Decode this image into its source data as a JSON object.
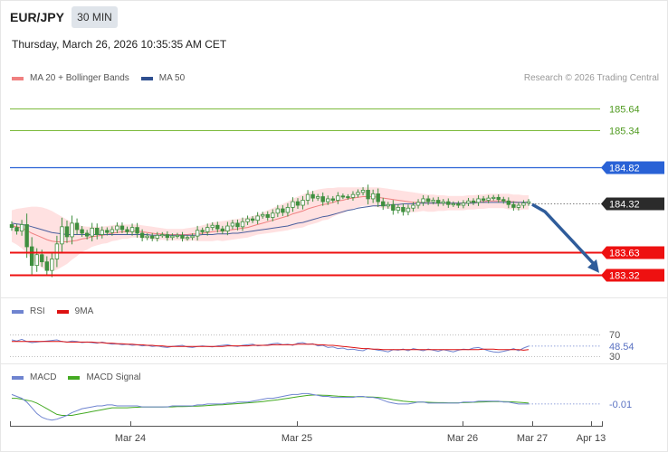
{
  "header": {
    "symbol": "EUR/JPY",
    "timeframe": "30 MIN",
    "datetime": "Thursday, March 26, 2026 10:35:35 AM CET"
  },
  "credit": "Research © 2026 Trading Central",
  "colors": {
    "bollinger_band": "#ffd9d9",
    "ma20": "#f08080",
    "ma50": "#4a5f9e",
    "candle": "#3f8f3f",
    "resistance": "#7cba3c",
    "pivot": "#2962d6",
    "support": "#ee1111",
    "forecast_arrow": "#2f5c9a",
    "rsi": "#6f84d0",
    "rsi_ma": "#dd1111",
    "macd": "#6f84d0",
    "macd_signal": "#44aa22"
  },
  "chart_data": [
    {
      "type": "candlestick",
      "panel": "price",
      "legend": [
        {
          "label": "MA 20 + Bollinger Bands",
          "color": "#f08080"
        },
        {
          "label": "MA 50",
          "color": "#2e4f8f"
        }
      ],
      "x_ticks": [
        "Mar 24",
        "Mar 25",
        "Mar 26",
        "Mar 27",
        "Apr 13"
      ],
      "ylim": [
        183.18,
        185.78
      ],
      "closes": [
        183.98,
        183.93,
        184.02,
        183.71,
        183.45,
        183.6,
        183.5,
        183.38,
        183.54,
        183.75,
        183.99,
        183.85,
        184.04,
        183.95,
        183.9,
        183.86,
        183.97,
        183.88,
        183.94,
        183.91,
        183.95,
        184.0,
        183.95,
        183.92,
        183.98,
        183.9,
        183.84,
        183.86,
        183.83,
        183.87,
        183.88,
        183.84,
        183.86,
        183.87,
        183.83,
        183.84,
        183.86,
        183.94,
        183.92,
        183.98,
        184.01,
        183.96,
        183.93,
        184.0,
        184.04,
        183.99,
        184.06,
        184.1,
        184.08,
        184.14,
        184.16,
        184.12,
        184.18,
        184.24,
        184.19,
        184.26,
        184.34,
        184.29,
        184.36,
        184.44,
        184.39,
        184.41,
        184.34,
        184.38,
        184.36,
        184.42,
        184.41,
        184.4,
        184.44,
        184.47,
        184.5,
        184.38,
        184.45,
        184.34,
        184.28,
        184.3,
        184.22,
        184.26,
        184.2,
        184.25,
        184.29,
        184.33,
        184.38,
        184.34,
        184.36,
        184.32,
        184.34,
        184.3,
        184.31,
        184.29,
        184.32,
        184.35,
        184.33,
        184.38,
        184.36,
        184.39,
        184.4,
        184.37,
        184.35,
        184.3,
        184.26,
        184.29,
        184.32,
        184.34
      ],
      "ma20": [
        184.0,
        183.99,
        183.97,
        183.94,
        183.9,
        183.87,
        183.84,
        183.81,
        183.79,
        183.78,
        183.78,
        183.78,
        183.79,
        183.8,
        183.82,
        183.83,
        183.85,
        183.86,
        183.87,
        183.88,
        183.9,
        183.91,
        183.92,
        183.92,
        183.93,
        183.93,
        183.92,
        183.91,
        183.9,
        183.89,
        183.89,
        183.88,
        183.88,
        183.88,
        183.88,
        183.88,
        183.89,
        183.89,
        183.9,
        183.91,
        183.92,
        183.93,
        183.93,
        183.94,
        183.95,
        183.96,
        183.97,
        183.98,
        184.0,
        184.02,
        184.04,
        184.06,
        184.08,
        184.1,
        184.12,
        184.14,
        184.17,
        184.19,
        184.21,
        184.24,
        184.26,
        184.28,
        184.3,
        184.31,
        184.33,
        184.35,
        184.36,
        184.38,
        184.39,
        184.4,
        184.41,
        184.41,
        184.41,
        184.4,
        184.39,
        184.38,
        184.37,
        184.36,
        184.35,
        184.34,
        184.33,
        184.33,
        184.33,
        184.32,
        184.32,
        184.32,
        184.32,
        184.32,
        184.32,
        184.32,
        184.32,
        184.33,
        184.33,
        184.34,
        184.34,
        184.35,
        184.35,
        184.35,
        184.35,
        184.34,
        184.34,
        184.33,
        184.33,
        184.33
      ],
      "boll_upper": [
        184.22,
        184.24,
        184.25,
        184.26,
        184.27,
        184.27,
        184.26,
        184.24,
        184.21,
        184.17,
        184.13,
        184.09,
        184.05,
        184.02,
        184.0,
        183.99,
        183.99,
        183.99,
        183.99,
        184.0,
        184.01,
        184.02,
        184.02,
        184.02,
        184.02,
        184.02,
        184.01,
        184.0,
        183.99,
        183.98,
        183.97,
        183.96,
        183.96,
        183.96,
        183.96,
        183.97,
        183.98,
        183.99,
        184.01,
        184.03,
        184.05,
        184.06,
        184.07,
        184.08,
        184.09,
        184.1,
        184.11,
        184.12,
        184.14,
        184.16,
        184.19,
        184.22,
        184.25,
        184.28,
        184.31,
        184.34,
        184.38,
        184.41,
        184.44,
        184.47,
        184.49,
        184.51,
        184.52,
        184.53,
        184.53,
        184.54,
        184.54,
        184.54,
        184.54,
        184.54,
        184.54,
        184.54,
        184.54,
        184.54,
        184.53,
        184.52,
        184.51,
        184.5,
        184.49,
        184.48,
        184.47,
        184.46,
        184.45,
        184.44,
        184.44,
        184.43,
        184.43,
        184.42,
        184.42,
        184.42,
        184.42,
        184.43,
        184.43,
        184.44,
        184.44,
        184.45,
        184.45,
        184.45,
        184.45,
        184.45,
        184.44,
        184.44,
        184.43,
        184.43
      ],
      "boll_lower": [
        183.78,
        183.74,
        183.69,
        183.62,
        183.53,
        183.47,
        183.42,
        183.38,
        183.37,
        183.39,
        183.43,
        183.47,
        183.53,
        183.58,
        183.64,
        183.67,
        183.71,
        183.73,
        183.75,
        183.76,
        183.79,
        183.8,
        183.82,
        183.82,
        183.84,
        183.84,
        183.83,
        183.82,
        183.81,
        183.8,
        183.81,
        183.8,
        183.8,
        183.8,
        183.8,
        183.79,
        183.8,
        183.79,
        183.79,
        183.79,
        183.79,
        183.8,
        183.79,
        183.8,
        183.81,
        183.82,
        183.83,
        183.84,
        183.86,
        183.88,
        183.89,
        183.9,
        183.91,
        183.92,
        183.93,
        183.94,
        183.96,
        183.97,
        183.98,
        184.01,
        184.03,
        184.05,
        184.08,
        184.09,
        184.13,
        184.16,
        184.18,
        184.22,
        184.24,
        184.26,
        184.28,
        184.28,
        184.28,
        184.26,
        184.25,
        184.24,
        184.23,
        184.22,
        184.21,
        184.2,
        184.19,
        184.2,
        184.21,
        184.2,
        184.2,
        184.21,
        184.21,
        184.22,
        184.22,
        184.22,
        184.22,
        184.23,
        184.23,
        184.24,
        184.24,
        184.25,
        184.25,
        184.25,
        184.25,
        184.23,
        184.24,
        184.22,
        184.23,
        184.23
      ],
      "ma50": [
        184.04,
        184.03,
        184.02,
        184.01,
        183.99,
        183.97,
        183.95,
        183.93,
        183.91,
        183.9,
        183.89,
        183.88,
        183.88,
        183.88,
        183.88,
        183.88,
        183.88,
        183.88,
        183.88,
        183.88,
        183.88,
        183.88,
        183.88,
        183.88,
        183.88,
        183.88,
        183.88,
        183.88,
        183.87,
        183.87,
        183.87,
        183.87,
        183.87,
        183.87,
        183.87,
        183.87,
        183.87,
        183.87,
        183.88,
        183.88,
        183.88,
        183.89,
        183.89,
        183.89,
        183.9,
        183.9,
        183.91,
        183.92,
        183.93,
        183.94,
        183.95,
        183.96,
        183.97,
        183.98,
        183.99,
        184.0,
        184.02,
        184.04,
        184.05,
        184.07,
        184.09,
        184.11,
        184.13,
        184.14,
        184.16,
        184.18,
        184.2,
        184.22,
        184.23,
        184.25,
        184.26,
        184.27,
        184.28,
        184.28,
        184.29,
        184.29,
        184.3,
        184.3,
        184.31,
        184.31,
        184.31,
        184.32,
        184.32,
        184.32,
        184.32,
        184.32,
        184.32,
        184.32,
        184.32,
        184.32,
        184.32,
        184.32,
        184.32,
        184.33,
        184.33,
        184.33,
        184.33,
        184.33,
        184.33,
        184.33,
        184.33,
        184.33,
        184.33,
        184.33
      ],
      "levels": [
        {
          "value": 185.64,
          "label": "185.64",
          "kind": "resistance"
        },
        {
          "value": 185.34,
          "label": "185.34",
          "kind": "resistance"
        },
        {
          "value": 184.82,
          "label": "184.82",
          "kind": "pivot"
        },
        {
          "value": 184.32,
          "label": "184.32",
          "kind": "last"
        },
        {
          "value": 183.63,
          "label": "183.63",
          "kind": "support"
        },
        {
          "value": 183.32,
          "label": "183.32",
          "kind": "support"
        }
      ],
      "forecast_target": 183.32
    },
    {
      "type": "line",
      "panel": "rsi",
      "legend": [
        {
          "label": "RSI",
          "color": "#6f84d0"
        },
        {
          "label": "9MA",
          "color": "#dd1111"
        }
      ],
      "y_ticks": [
        70,
        30
      ],
      "last_value": "48.54",
      "ylim": [
        20,
        80
      ],
      "series": [
        {
          "name": "RSI",
          "values": [
            60,
            58,
            61,
            57,
            55,
            56,
            57,
            58,
            59,
            60,
            57,
            56,
            58,
            57,
            55,
            56,
            55,
            54,
            56,
            54,
            52,
            53,
            51,
            52,
            50,
            51,
            49,
            50,
            48,
            49,
            47,
            46,
            48,
            49,
            50,
            47,
            46,
            48,
            49,
            48,
            47,
            49,
            50,
            51,
            49,
            48,
            50,
            51,
            52,
            49,
            50,
            51,
            53,
            54,
            51,
            52,
            50,
            54,
            55,
            52,
            53,
            49,
            50,
            46,
            47,
            44,
            45,
            42,
            43,
            41,
            40,
            44,
            43,
            41,
            40,
            38,
            42,
            41,
            43,
            40,
            44,
            42,
            40,
            43,
            41,
            39,
            42,
            40,
            38,
            41,
            43,
            42,
            45,
            46,
            43,
            40,
            38,
            37,
            39,
            41,
            44,
            40,
            45,
            48.54
          ]
        },
        {
          "name": "9MA",
          "values": [
            57,
            57,
            57,
            57,
            57,
            57,
            57,
            57,
            57,
            57,
            57,
            56,
            56,
            56,
            56,
            56,
            56,
            55,
            55,
            54,
            54,
            53,
            53,
            52,
            52,
            51,
            51,
            50,
            50,
            49,
            49,
            48,
            48,
            48,
            48,
            48,
            48,
            48,
            48,
            48,
            48,
            48,
            48,
            49,
            49,
            49,
            49,
            49,
            50,
            50,
            50,
            50,
            51,
            51,
            51,
            51,
            51,
            52,
            52,
            52,
            52,
            51,
            51,
            50,
            50,
            49,
            48,
            47,
            46,
            45,
            44,
            44,
            43,
            43,
            42,
            42,
            42,
            42,
            42,
            42,
            42,
            42,
            42,
            42,
            42,
            42,
            42,
            42,
            42,
            42,
            42,
            42,
            42,
            42,
            43,
            43,
            43,
            42,
            42,
            42,
            42,
            42,
            41,
            42
          ]
        }
      ]
    },
    {
      "type": "line",
      "panel": "macd",
      "legend": [
        {
          "label": "MACD",
          "color": "#6f84d0"
        },
        {
          "label": "MACD Signal",
          "color": "#44aa22"
        }
      ],
      "last_value": "-0.01",
      "ylim": [
        -0.12,
        0.08
      ],
      "series": [
        {
          "name": "MACD",
          "values": [
            0.04,
            0.03,
            0.02,
            0.0,
            -0.03,
            -0.06,
            -0.08,
            -0.09,
            -0.095,
            -0.09,
            -0.08,
            -0.07,
            -0.055,
            -0.045,
            -0.035,
            -0.03,
            -0.025,
            -0.02,
            -0.02,
            -0.015,
            -0.015,
            -0.02,
            -0.02,
            -0.02,
            -0.02,
            -0.02,
            -0.025,
            -0.025,
            -0.025,
            -0.025,
            -0.025,
            -0.025,
            -0.02,
            -0.02,
            -0.02,
            -0.02,
            -0.02,
            -0.015,
            -0.015,
            -0.01,
            -0.01,
            -0.01,
            -0.01,
            -0.005,
            -0.005,
            0.0,
            0.0,
            0.0,
            0.005,
            0.01,
            0.015,
            0.02,
            0.02,
            0.025,
            0.03,
            0.035,
            0.04,
            0.04,
            0.045,
            0.045,
            0.04,
            0.035,
            0.03,
            0.03,
            0.025,
            0.025,
            0.025,
            0.025,
            0.025,
            0.03,
            0.03,
            0.025,
            0.025,
            0.02,
            0.01,
            0.0,
            -0.005,
            -0.01,
            -0.01,
            -0.01,
            -0.005,
            0.0,
            0.0,
            -0.005,
            -0.005,
            -0.005,
            -0.005,
            -0.005,
            -0.005,
            -0.005,
            0.0,
            0.0,
            0.0,
            0.005,
            0.005,
            0.005,
            0.005,
            0.005,
            0.0,
            0.0,
            -0.005,
            -0.01,
            -0.01,
            -0.01
          ]
        },
        {
          "name": "MACD Signal",
          "values": [
            0.02,
            0.02,
            0.015,
            0.01,
            0.005,
            -0.005,
            -0.02,
            -0.035,
            -0.05,
            -0.065,
            -0.07,
            -0.07,
            -0.07,
            -0.065,
            -0.06,
            -0.055,
            -0.05,
            -0.045,
            -0.04,
            -0.035,
            -0.03,
            -0.03,
            -0.03,
            -0.03,
            -0.028,
            -0.027,
            -0.026,
            -0.026,
            -0.026,
            -0.026,
            -0.026,
            -0.025,
            -0.025,
            -0.024,
            -0.024,
            -0.023,
            -0.022,
            -0.021,
            -0.02,
            -0.018,
            -0.016,
            -0.015,
            -0.014,
            -0.012,
            -0.01,
            -0.008,
            -0.006,
            -0.004,
            -0.002,
            0.0,
            0.003,
            0.006,
            0.009,
            0.012,
            0.016,
            0.02,
            0.024,
            0.028,
            0.032,
            0.035,
            0.037,
            0.037,
            0.036,
            0.035,
            0.033,
            0.031,
            0.03,
            0.029,
            0.028,
            0.028,
            0.028,
            0.027,
            0.026,
            0.025,
            0.022,
            0.018,
            0.013,
            0.009,
            0.005,
            0.003,
            0.001,
            0.0,
            0.0,
            -0.001,
            -0.002,
            -0.003,
            -0.003,
            -0.004,
            -0.004,
            -0.004,
            -0.003,
            -0.002,
            -0.001,
            0.0,
            0.001,
            0.002,
            0.003,
            0.003,
            0.003,
            0.002,
            0.001,
            -0.001,
            -0.003,
            -0.005
          ]
        }
      ]
    }
  ]
}
